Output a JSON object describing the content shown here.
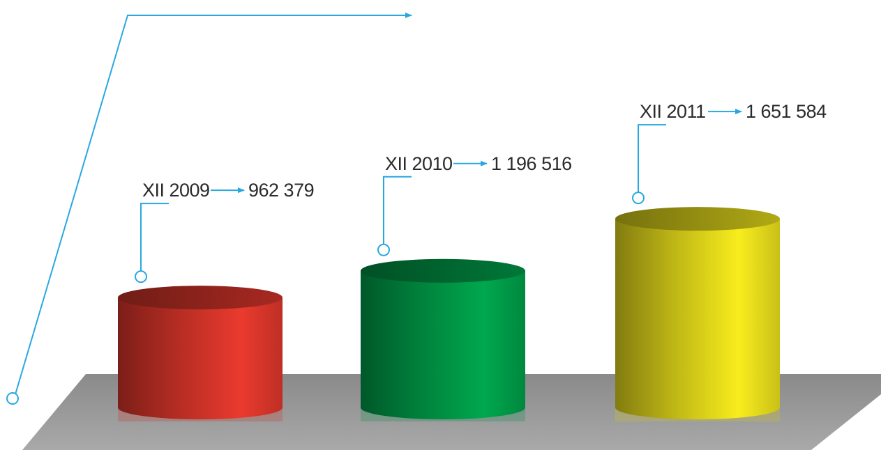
{
  "chart_data": {
    "type": "bar",
    "style": "3d-cylinder",
    "categories": [
      "XII 2009",
      "XII 2010",
      "XII 2011"
    ],
    "values": [
      962379,
      1196516,
      1651584
    ],
    "value_labels": [
      "962 379",
      "1 196 516",
      "1 651 584"
    ],
    "title": "",
    "xlabel": "",
    "ylabel": "",
    "grid": false,
    "legend": "none",
    "colors": [
      "#e0372c",
      "#00a04a",
      "#ece21c"
    ],
    "accent": "#29a8e0",
    "floor_color": "#9a9a9a"
  }
}
